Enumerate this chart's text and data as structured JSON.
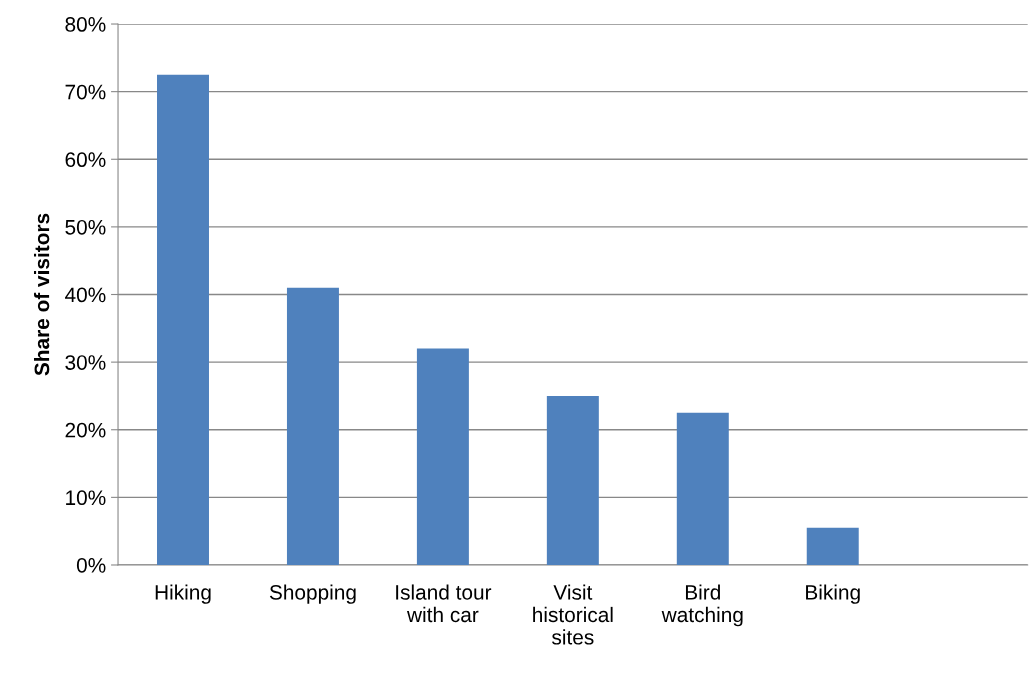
{
  "chart_data": {
    "type": "bar",
    "ylabel": "Share of visitors",
    "categories": [
      "Hiking",
      "Shopping",
      "Island tour\nwith car",
      "Visit\nhistorical\nsites",
      "Bird\nwatching",
      "Biking",
      null
    ],
    "values": [
      72.5,
      41,
      32,
      25,
      22.5,
      5.5,
      null
    ],
    "color": "#4f81bd",
    "ylim": [
      0,
      80
    ],
    "yticks": [
      {
        "value": 0,
        "label": "0%"
      },
      {
        "value": 10,
        "label": "10%"
      },
      {
        "value": 20,
        "label": "20%"
      },
      {
        "value": 30,
        "label": "30%"
      },
      {
        "value": 40,
        "label": "40%"
      },
      {
        "value": 50,
        "label": "50%"
      },
      {
        "value": 60,
        "label": "60%"
      },
      {
        "value": 70,
        "label": "70%"
      },
      {
        "value": 80,
        "label": "80%"
      }
    ],
    "grid": "y"
  }
}
